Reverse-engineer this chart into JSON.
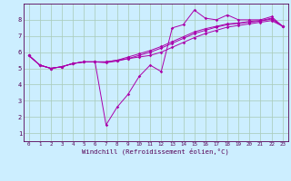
{
  "xlabel": "Windchill (Refroidissement éolien,°C)",
  "bg_color": "#cceeff",
  "line_color": "#aa00aa",
  "grid_color": "#aaddcc",
  "xlim": [
    -0.5,
    23.5
  ],
  "ylim": [
    0.5,
    9.0
  ],
  "xtick_labels": [
    "0",
    "1",
    "2",
    "3",
    "4",
    "5",
    "6",
    "7",
    "8",
    "9",
    "10",
    "11",
    "12",
    "13",
    "14",
    "15",
    "16",
    "17",
    "18",
    "19",
    "20",
    "21",
    "22",
    "23"
  ],
  "ytick_labels": [
    "1",
    "2",
    "3",
    "4",
    "5",
    "6",
    "7",
    "8"
  ],
  "series": [
    [
      5.8,
      5.2,
      5.0,
      5.1,
      5.3,
      5.4,
      5.4,
      1.5,
      2.6,
      3.4,
      4.5,
      5.2,
      4.8,
      7.5,
      7.7,
      8.6,
      8.1,
      8.0,
      8.3,
      8.0,
      8.0,
      8.0,
      8.2,
      7.6
    ],
    [
      5.8,
      5.2,
      5.0,
      5.1,
      5.3,
      5.4,
      5.4,
      5.4,
      5.5,
      5.6,
      5.7,
      5.8,
      6.0,
      6.3,
      6.6,
      6.9,
      7.15,
      7.35,
      7.55,
      7.65,
      7.75,
      7.85,
      7.95,
      7.6
    ],
    [
      5.8,
      5.2,
      5.0,
      5.1,
      5.3,
      5.4,
      5.4,
      5.4,
      5.5,
      5.7,
      5.9,
      6.1,
      6.35,
      6.65,
      6.95,
      7.25,
      7.45,
      7.6,
      7.75,
      7.8,
      7.9,
      7.95,
      8.1,
      7.6
    ],
    [
      5.8,
      5.2,
      5.0,
      5.1,
      5.3,
      5.4,
      5.4,
      5.35,
      5.45,
      5.6,
      5.8,
      6.0,
      6.25,
      6.55,
      6.85,
      7.15,
      7.35,
      7.55,
      7.7,
      7.78,
      7.85,
      7.92,
      8.05,
      7.6
    ]
  ]
}
